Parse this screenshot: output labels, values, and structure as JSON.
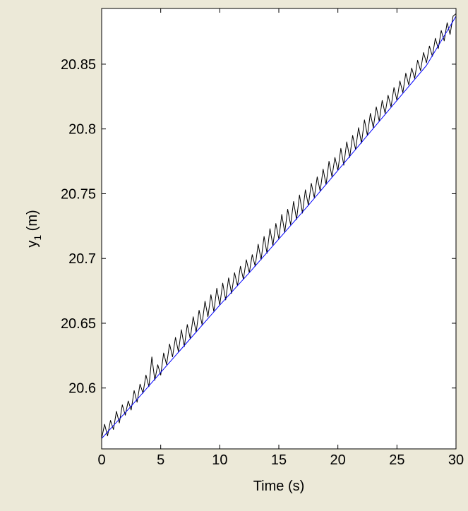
{
  "chart_data": {
    "type": "line",
    "title": "",
    "xlabel": "Time (s)",
    "ylabel": {
      "base": "y",
      "subscript": "1",
      "rest": " (m)"
    },
    "xlim": [
      0,
      30
    ],
    "ylim": [
      20.553,
      20.893
    ],
    "xticks": [
      0,
      5,
      10,
      15,
      20,
      25,
      30
    ],
    "xtick_labels": [
      "0",
      "5",
      "10",
      "15",
      "20",
      "25",
      "30"
    ],
    "yticks": [
      20.6,
      20.65,
      20.7,
      20.75,
      20.8,
      20.85
    ],
    "ytick_labels": [
      "20.6",
      "20.65",
      "20.7",
      "20.75",
      "20.8",
      "20.85"
    ],
    "grid": false,
    "legend": "none",
    "series": [
      {
        "color": "#000000",
        "style": "noisy measurement",
        "x": [
          0,
          0.25,
          0.5,
          0.75,
          1,
          1.25,
          1.5,
          1.75,
          2,
          2.25,
          2.5,
          2.75,
          3,
          3.25,
          3.5,
          3.75,
          4,
          4.25,
          4.5,
          4.75,
          5,
          5.25,
          5.5,
          5.75,
          6,
          6.25,
          6.5,
          6.75,
          7,
          7.25,
          7.5,
          7.75,
          8,
          8.25,
          8.5,
          8.75,
          9,
          9.25,
          9.5,
          9.75,
          10,
          10.25,
          10.5,
          10.75,
          11,
          11.25,
          11.5,
          11.75,
          12,
          12.25,
          12.5,
          12.75,
          13,
          13.25,
          13.5,
          13.75,
          14,
          14.25,
          14.5,
          14.75,
          15,
          15.25,
          15.5,
          15.75,
          16,
          16.25,
          16.5,
          16.75,
          17,
          17.25,
          17.5,
          17.75,
          18,
          18.25,
          18.5,
          18.75,
          19,
          19.25,
          19.5,
          19.75,
          20,
          20.25,
          20.5,
          20.75,
          21,
          21.25,
          21.5,
          21.75,
          22,
          22.25,
          22.5,
          22.75,
          23,
          23.25,
          23.5,
          23.75,
          24,
          24.25,
          24.5,
          24.75,
          25,
          25.25,
          25.5,
          25.75,
          26,
          26.25,
          26.5,
          26.75,
          27,
          27.25,
          27.5,
          27.75,
          28,
          28.25,
          28.5,
          28.75,
          29,
          29.25,
          29.5,
          29.75,
          30
        ],
        "y": [
          20.561,
          20.572,
          20.563,
          20.575,
          20.568,
          20.582,
          20.573,
          20.587,
          20.579,
          20.59,
          20.583,
          20.598,
          20.589,
          20.603,
          20.596,
          20.61,
          20.601,
          20.624,
          20.606,
          20.618,
          20.61,
          20.627,
          20.618,
          20.634,
          20.624,
          20.639,
          20.628,
          20.645,
          20.632,
          20.649,
          20.638,
          20.655,
          20.643,
          20.66,
          20.649,
          20.667,
          20.655,
          20.672,
          20.659,
          20.677,
          20.664,
          20.681,
          20.668,
          20.685,
          20.673,
          20.689,
          20.679,
          20.694,
          20.684,
          20.699,
          20.689,
          20.703,
          20.694,
          20.711,
          20.699,
          20.717,
          20.704,
          20.723,
          20.71,
          20.727,
          20.715,
          20.734,
          20.72,
          20.738,
          20.726,
          20.744,
          20.73,
          20.749,
          20.735,
          20.753,
          20.741,
          20.758,
          20.747,
          20.763,
          20.752,
          20.769,
          20.757,
          20.775,
          20.763,
          20.778,
          20.768,
          20.785,
          20.772,
          20.79,
          20.778,
          20.795,
          20.784,
          20.801,
          20.789,
          20.807,
          20.795,
          20.812,
          20.801,
          20.817,
          20.806,
          20.822,
          20.812,
          20.826,
          20.817,
          20.832,
          20.822,
          20.837,
          20.828,
          20.843,
          20.834,
          20.847,
          20.839,
          20.853,
          20.845,
          20.859,
          20.851,
          20.864,
          20.856,
          20.87,
          20.862,
          20.876,
          20.868,
          20.882,
          20.873,
          20.887,
          20.889
        ]
      },
      {
        "color": "#0000ff",
        "style": "smooth fit",
        "x": [
          0,
          2.5,
          5,
          7.5,
          10,
          12.5,
          15,
          17.5,
          20,
          22.5,
          25,
          27.5,
          30
        ],
        "y": [
          20.561,
          20.586,
          20.612,
          20.638,
          20.664,
          20.689,
          20.715,
          20.741,
          20.768,
          20.795,
          20.822,
          20.849,
          20.887
        ]
      }
    ]
  }
}
